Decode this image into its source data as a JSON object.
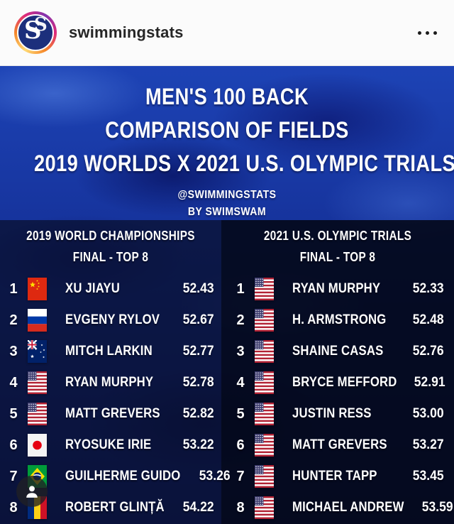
{
  "header": {
    "username": "swimmingstats",
    "logo_letter": "S",
    "more_options_icon": "ellipsis-icon"
  },
  "poster": {
    "title_lines": [
      "MEN'S 100 BACK",
      "COMPARISON OF FIELDS",
      "2019 WORLDS X 2021 U.S. OLYMPIC TRIALS"
    ],
    "handle": "@SWIMMINGSTATS",
    "byline": "BY SWIMSWAM"
  },
  "columns": [
    {
      "title": "2019 WORLD CHAMPIONSHIPS",
      "subtitle": "FINAL - TOP 8",
      "rows": [
        {
          "rank": "1",
          "flag": "CN",
          "flag_name": "china-flag-icon",
          "name": "XU JIAYU",
          "time": "52.43"
        },
        {
          "rank": "2",
          "flag": "RU",
          "flag_name": "russia-flag-icon",
          "name": "EVGENY RYLOV",
          "time": "52.67"
        },
        {
          "rank": "3",
          "flag": "AU",
          "flag_name": "australia-flag-icon",
          "name": "MITCH LARKIN",
          "time": "52.77"
        },
        {
          "rank": "4",
          "flag": "US",
          "flag_name": "usa-flag-icon",
          "name": "RYAN MURPHY",
          "time": "52.78"
        },
        {
          "rank": "5",
          "flag": "US",
          "flag_name": "usa-flag-icon",
          "name": "MATT GREVERS",
          "time": "52.82"
        },
        {
          "rank": "6",
          "flag": "JP",
          "flag_name": "japan-flag-icon",
          "name": "RYOSUKE IRIE",
          "time": "53.22"
        },
        {
          "rank": "7",
          "flag": "BR",
          "flag_name": "brazil-flag-icon",
          "name": "GUILHERME GUIDO",
          "time": "53.26"
        },
        {
          "rank": "8",
          "flag": "RO",
          "flag_name": "romania-flag-icon",
          "name": "ROBERT GLINȚĂ",
          "time": "54.22"
        }
      ]
    },
    {
      "title": "2021 U.S. OLYMPIC TRIALS",
      "subtitle": "FINAL - TOP 8",
      "rows": [
        {
          "rank": "1",
          "flag": "US",
          "flag_name": "usa-flag-icon",
          "name": "RYAN MURPHY",
          "time": "52.33"
        },
        {
          "rank": "2",
          "flag": "US",
          "flag_name": "usa-flag-icon",
          "name": "H. ARMSTRONG",
          "time": "52.48"
        },
        {
          "rank": "3",
          "flag": "US",
          "flag_name": "usa-flag-icon",
          "name": "SHAINE CASAS",
          "time": "52.76"
        },
        {
          "rank": "4",
          "flag": "US",
          "flag_name": "usa-flag-icon",
          "name": "BRYCE MEFFORD",
          "time": "52.91"
        },
        {
          "rank": "5",
          "flag": "US",
          "flag_name": "usa-flag-icon",
          "name": "JUSTIN RESS",
          "time": "53.00"
        },
        {
          "rank": "6",
          "flag": "US",
          "flag_name": "usa-flag-icon",
          "name": "MATT GREVERS",
          "time": "53.27"
        },
        {
          "rank": "7",
          "flag": "US",
          "flag_name": "usa-flag-icon",
          "name": "HUNTER TAPP",
          "time": "53.45"
        },
        {
          "rank": "8",
          "flag": "US",
          "flag_name": "usa-flag-icon",
          "name": "MICHAEL ANDREW",
          "time": "53.59"
        }
      ]
    }
  ],
  "colors": {
    "header_bg": "#fbfbfb",
    "username_text": "#262626",
    "water_blue": "#16339c",
    "panel_left_overlay": "rgba(9,14,40,0.72)",
    "panel_right_overlay": "rgba(3,7,20,0.88)",
    "poster_text": "#ffffff",
    "logo_navy": "#1c2f7c"
  }
}
